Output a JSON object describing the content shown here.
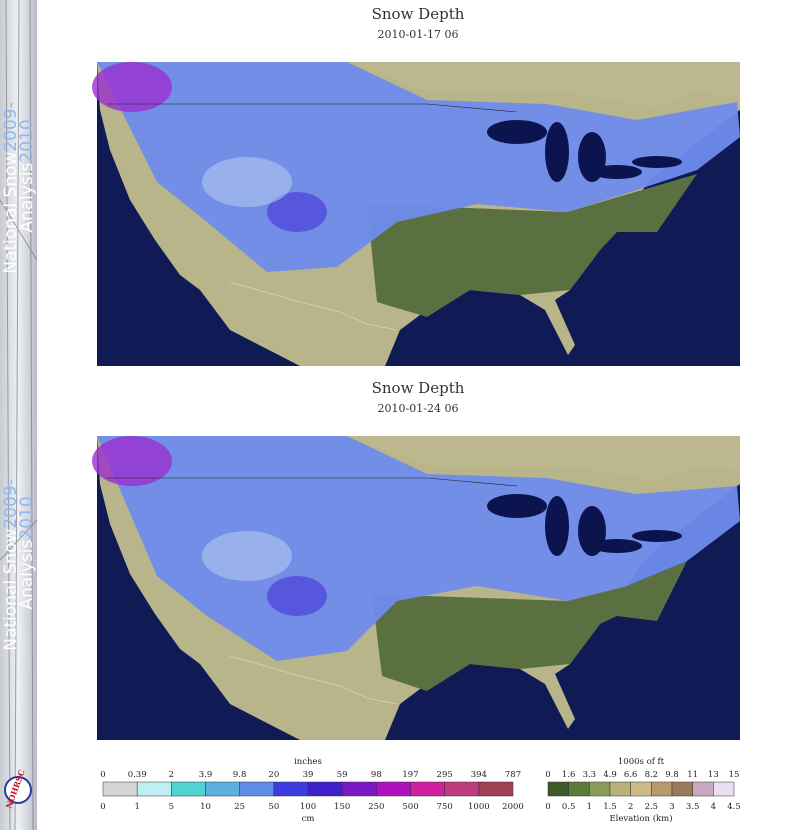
{
  "sidebar": {
    "line1": "National Snow",
    "line1_year": "2009-",
    "line2": "Analysis",
    "line2_year": "2010",
    "logo": "NOHRSC"
  },
  "maps": [
    {
      "title": "Snow Depth",
      "date": "2010-01-17 06"
    },
    {
      "title": "Snow Depth",
      "date": "2010-01-24 06"
    }
  ],
  "snow_legend": {
    "top_unit": "inches",
    "top_labels": [
      "0",
      "0.39",
      "2",
      "3.9",
      "9.8",
      "20",
      "39",
      "59",
      "98",
      "197",
      "295",
      "394",
      "787"
    ],
    "bottom_labels": [
      "0",
      "1",
      "5",
      "10",
      "25",
      "50",
      "100",
      "150",
      "250",
      "500",
      "750",
      "1000",
      "2000"
    ],
    "bottom_unit": "cm",
    "colors": [
      "#d4d4d4",
      "#bfeff0",
      "#4fd3d3",
      "#5ab0e0",
      "#5e8de6",
      "#3c3ce0",
      "#4020c8",
      "#7a18c8",
      "#b010c0",
      "#d020a0",
      "#c03a80",
      "#a04050"
    ]
  },
  "elevation_legend": {
    "top_unit": "1000s of ft",
    "top_labels": [
      "0",
      "1.6",
      "3.3",
      "4.9",
      "6.6",
      "8.2",
      "9.8",
      "11",
      "13",
      "15"
    ],
    "bottom_labels": [
      "0",
      "0.5",
      "1",
      "1.5",
      "2",
      "2.5",
      "3",
      "3.5",
      "4",
      "4.5"
    ],
    "bottom_unit": "Elevation (km)",
    "colors": [
      "#3e5a2a",
      "#5c7a3c",
      "#8a9a58",
      "#b9b278",
      "#cbb98a",
      "#b89a6a",
      "#9a7a5a",
      "#c8a8c0",
      "#e8e0f0"
    ]
  }
}
